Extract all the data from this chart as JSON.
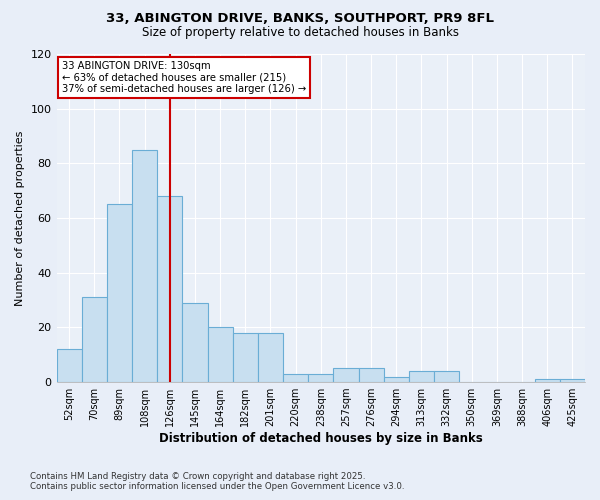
{
  "title_line1": "33, ABINGTON DRIVE, BANKS, SOUTHPORT, PR9 8FL",
  "title_line2": "Size of property relative to detached houses in Banks",
  "xlabel": "Distribution of detached houses by size in Banks",
  "ylabel": "Number of detached properties",
  "categories": [
    "52sqm",
    "70sqm",
    "89sqm",
    "108sqm",
    "126sqm",
    "145sqm",
    "164sqm",
    "182sqm",
    "201sqm",
    "220sqm",
    "238sqm",
    "257sqm",
    "276sqm",
    "294sqm",
    "313sqm",
    "332sqm",
    "350sqm",
    "369sqm",
    "388sqm",
    "406sqm",
    "425sqm"
  ],
  "values": [
    12,
    31,
    65,
    85,
    68,
    29,
    20,
    18,
    18,
    3,
    3,
    5,
    5,
    2,
    4,
    4,
    0,
    0,
    0,
    1,
    1
  ],
  "bar_color": "#c8dff0",
  "bar_edge_color": "#6aadd5",
  "bar_edge_width": 0.8,
  "vline_x": 4.0,
  "vline_color": "#cc0000",
  "annotation_line1": "33 ABINGTON DRIVE: 130sqm",
  "annotation_line2": "← 63% of detached houses are smaller (215)",
  "annotation_line3": "37% of semi-detached houses are larger (126) →",
  "annotation_box_color": "#ffffff",
  "annotation_box_edge": "#cc0000",
  "ylim": [
    0,
    120
  ],
  "yticks": [
    0,
    20,
    40,
    60,
    80,
    100,
    120
  ],
  "footer_line1": "Contains HM Land Registry data © Crown copyright and database right 2025.",
  "footer_line2": "Contains public sector information licensed under the Open Government Licence v3.0.",
  "bg_color": "#e8eef8",
  "plot_bg_color": "#eaf0f8"
}
